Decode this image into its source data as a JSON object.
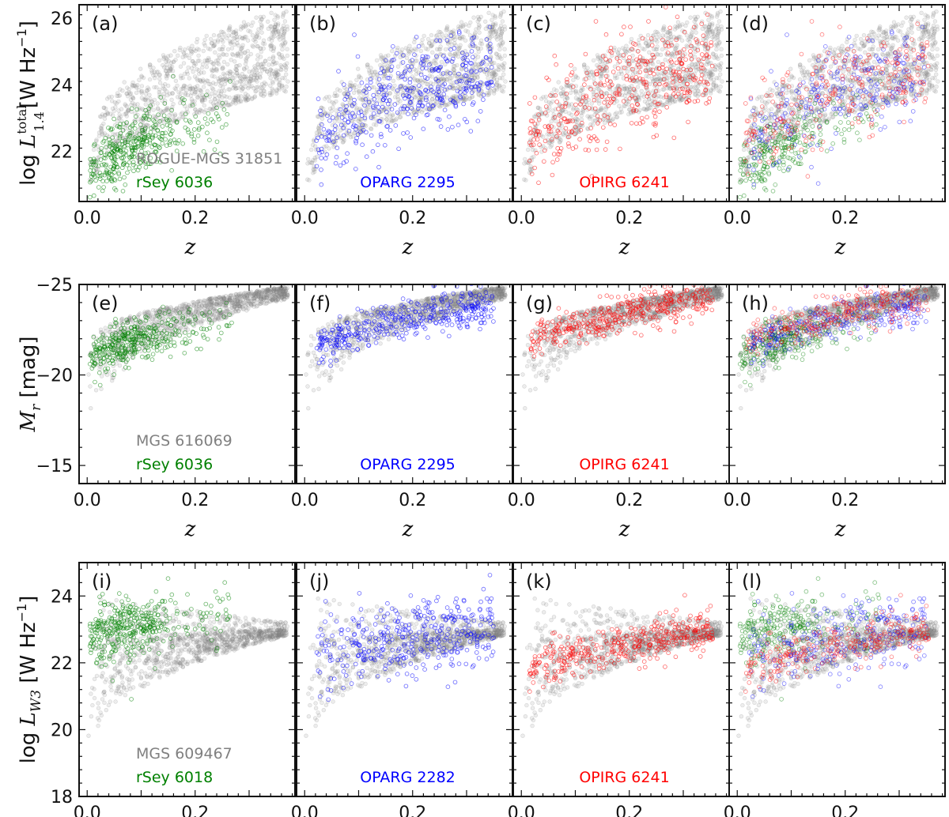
{
  "chart_data": {
    "type": "scatter",
    "layout": "3 rows x 4 columns of panels with shared y-axis per row",
    "grid": false,
    "x_axis": {
      "label": "z",
      "range": [
        -0.015,
        0.385
      ],
      "ticks": [
        "0.0",
        "0.2"
      ]
    },
    "colors": {
      "background_sample": "#808080",
      "rSey": "#008000",
      "OPARG": "#0000ff",
      "OPIRG": "#ff0000"
    },
    "rows": [
      {
        "y_label": "log L_1.4^total [W Hz^-1]",
        "y_label_main": "log ",
        "y_label_symbol": "L",
        "y_label_sup": "total",
        "y_label_sub": "1.4",
        "y_label_unit": "[W Hz",
        "y_label_exp": "−1",
        "y_label_close": "]",
        "y_range": [
          20.5,
          26.4
        ],
        "y_inverted": false,
        "y_ticks": [
          "22",
          "24",
          "26"
        ],
        "y_tick_values": [
          22,
          24,
          26
        ],
        "background": {
          "name": "ROGUE-MGS",
          "count": "31851",
          "label": "ROGUE-MGS 31851"
        },
        "panels": [
          {
            "tag": "(a)",
            "highlight": "rSey",
            "legend": "rSey 6036",
            "color": "#008000"
          },
          {
            "tag": "(b)",
            "highlight": "OPARG",
            "legend": "OPARG 2295",
            "color": "#0000ff"
          },
          {
            "tag": "(c)",
            "highlight": "OPIRG",
            "legend": "OPIRG 6241",
            "color": "#ff0000"
          },
          {
            "tag": "(d)",
            "highlight": "all",
            "legend": "",
            "color": ""
          }
        ]
      },
      {
        "y_label": "M_r [mag]",
        "y_label_main": "",
        "y_label_symbol": "M",
        "y_label_sup": "",
        "y_label_sub": "r",
        "y_label_unit": " [mag]",
        "y_label_exp": "",
        "y_label_close": "",
        "y_range": [
          -25,
          -14
        ],
        "y_inverted": true,
        "y_ticks": [
          "−25",
          "−20",
          "−15"
        ],
        "y_tick_values": [
          -25,
          -20,
          -15
        ],
        "background": {
          "name": "MGS",
          "count": "616069",
          "label": "MGS 616069"
        },
        "panels": [
          {
            "tag": "(e)",
            "highlight": "rSey",
            "legend": "rSey 6036",
            "color": "#008000"
          },
          {
            "tag": "(f)",
            "highlight": "OPARG",
            "legend": "OPARG 2295",
            "color": "#0000ff"
          },
          {
            "tag": "(g)",
            "highlight": "OPIRG",
            "legend": "OPIRG 6241",
            "color": "#ff0000"
          },
          {
            "tag": "(h)",
            "highlight": "all",
            "legend": "",
            "color": ""
          }
        ]
      },
      {
        "y_label": "log L_W3 [W Hz^-1]",
        "y_label_main": "log ",
        "y_label_symbol": "L",
        "y_label_sup": "",
        "y_label_sub": "W3",
        "y_label_unit": " [W Hz",
        "y_label_exp": "−1",
        "y_label_close": "]",
        "y_range": [
          18,
          25
        ],
        "y_inverted": false,
        "y_ticks": [
          "18",
          "20",
          "22",
          "24"
        ],
        "y_tick_values": [
          18,
          20,
          22,
          24
        ],
        "background": {
          "name": "MGS",
          "count": "609467",
          "label": "MGS 609467"
        },
        "panels": [
          {
            "tag": "(i)",
            "highlight": "rSey",
            "legend": "rSey 6018",
            "color": "#008000"
          },
          {
            "tag": "(j)",
            "highlight": "OPARG",
            "legend": "OPARG 2282",
            "color": "#0000ff"
          },
          {
            "tag": "(k)",
            "highlight": "OPIRG",
            "legend": "OPIRG 6241",
            "color": "#ff0000"
          },
          {
            "tag": "(l)",
            "highlight": "all",
            "legend": "",
            "color": ""
          }
        ]
      }
    ],
    "approx_distributions": {
      "note": "points are dense clouds; approximate envelopes read from the axes",
      "row1": {
        "background": {
          "lower_edge": [
            [
              0.005,
              20.6
            ],
            [
              0.05,
              21.8
            ],
            [
              0.1,
              22.4
            ],
            [
              0.2,
              23.0
            ],
            [
              0.3,
              23.4
            ]
          ],
          "upper_edge": [
            [
              0.01,
              22.0
            ],
            [
              0.05,
              24.2
            ],
            [
              0.1,
              24.9
            ],
            [
              0.2,
              25.6
            ],
            [
              0.3,
              26.0
            ]
          ]
        },
        "rSey": {
          "center": [
            [
              0.02,
              21.5
            ],
            [
              0.06,
              22.2
            ],
            [
              0.12,
              22.7
            ],
            [
              0.2,
              23.1
            ],
            [
              0.25,
              23.5
            ]
          ]
        },
        "OPARG": {
          "center": [
            [
              0.03,
              22.0
            ],
            [
              0.08,
              22.8
            ],
            [
              0.15,
              23.5
            ],
            [
              0.22,
              24.0
            ],
            [
              0.3,
              24.4
            ]
          ]
        },
        "OPIRG": {
          "center": [
            [
              0.03,
              22.0
            ],
            [
              0.08,
              22.9
            ],
            [
              0.15,
              23.6
            ],
            [
              0.22,
              24.2
            ],
            [
              0.3,
              24.6
            ]
          ]
        }
      },
      "row2": {
        "background": {
          "faint_edge": [
            [
              0.002,
              -15.5
            ],
            [
              0.02,
              -19.0
            ],
            [
              0.05,
              -20.3
            ],
            [
              0.1,
              -21.4
            ],
            [
              0.2,
              -22.6
            ],
            [
              0.3,
              -23.4
            ],
            [
              0.37,
              -24.0
            ]
          ],
          "bright_edge": [
            [
              0.01,
              -22.0
            ],
            [
              0.05,
              -23.0
            ],
            [
              0.1,
              -23.5
            ],
            [
              0.2,
              -24.1
            ],
            [
              0.3,
              -24.5
            ],
            [
              0.37,
              -24.8
            ]
          ]
        },
        "rSey": {
          "center": [
            [
              0.03,
              -21.0
            ],
            [
              0.06,
              -21.5
            ],
            [
              0.1,
              -22.0
            ],
            [
              0.15,
              -22.5
            ],
            [
              0.2,
              -23.0
            ]
          ]
        },
        "OPARG": {
          "center": [
            [
              0.03,
              -21.3
            ],
            [
              0.08,
              -21.8
            ],
            [
              0.14,
              -22.3
            ],
            [
              0.22,
              -23.0
            ],
            [
              0.3,
              -23.6
            ]
          ]
        },
        "OPIRG": {
          "center": [
            [
              0.03,
              -21.5
            ],
            [
              0.08,
              -22.2
            ],
            [
              0.14,
              -22.8
            ],
            [
              0.22,
              -23.3
            ],
            [
              0.3,
              -23.8
            ]
          ]
        }
      },
      "row3": {
        "background": {
          "lower_edge": [
            [
              0.003,
              18.5
            ],
            [
              0.03,
              20.5
            ],
            [
              0.08,
              21.3
            ],
            [
              0.15,
              21.9
            ],
            [
              0.25,
              22.4
            ],
            [
              0.35,
              22.8
            ]
          ],
          "upper_edge": [
            [
              0.01,
              23.5
            ],
            [
              0.05,
              24.0
            ],
            [
              0.1,
              24.1
            ],
            [
              0.2,
              23.8
            ],
            [
              0.3,
              23.4
            ],
            [
              0.37,
              23.2
            ]
          ]
        },
        "rSey": {
          "center": [
            [
              0.02,
              22.5
            ],
            [
              0.05,
              22.9
            ],
            [
              0.1,
              23.1
            ],
            [
              0.15,
              23.3
            ],
            [
              0.2,
              23.5
            ]
          ]
        },
        "OPARG": {
          "center": [
            [
              0.03,
              22.0
            ],
            [
              0.08,
              22.5
            ],
            [
              0.14,
              22.8
            ],
            [
              0.22,
              23.0
            ],
            [
              0.3,
              23.1
            ]
          ]
        },
        "OPIRG": {
          "center": [
            [
              0.02,
              21.5
            ],
            [
              0.07,
              21.9
            ],
            [
              0.14,
              22.3
            ],
            [
              0.22,
              22.6
            ],
            [
              0.3,
              22.9
            ]
          ]
        }
      }
    }
  }
}
